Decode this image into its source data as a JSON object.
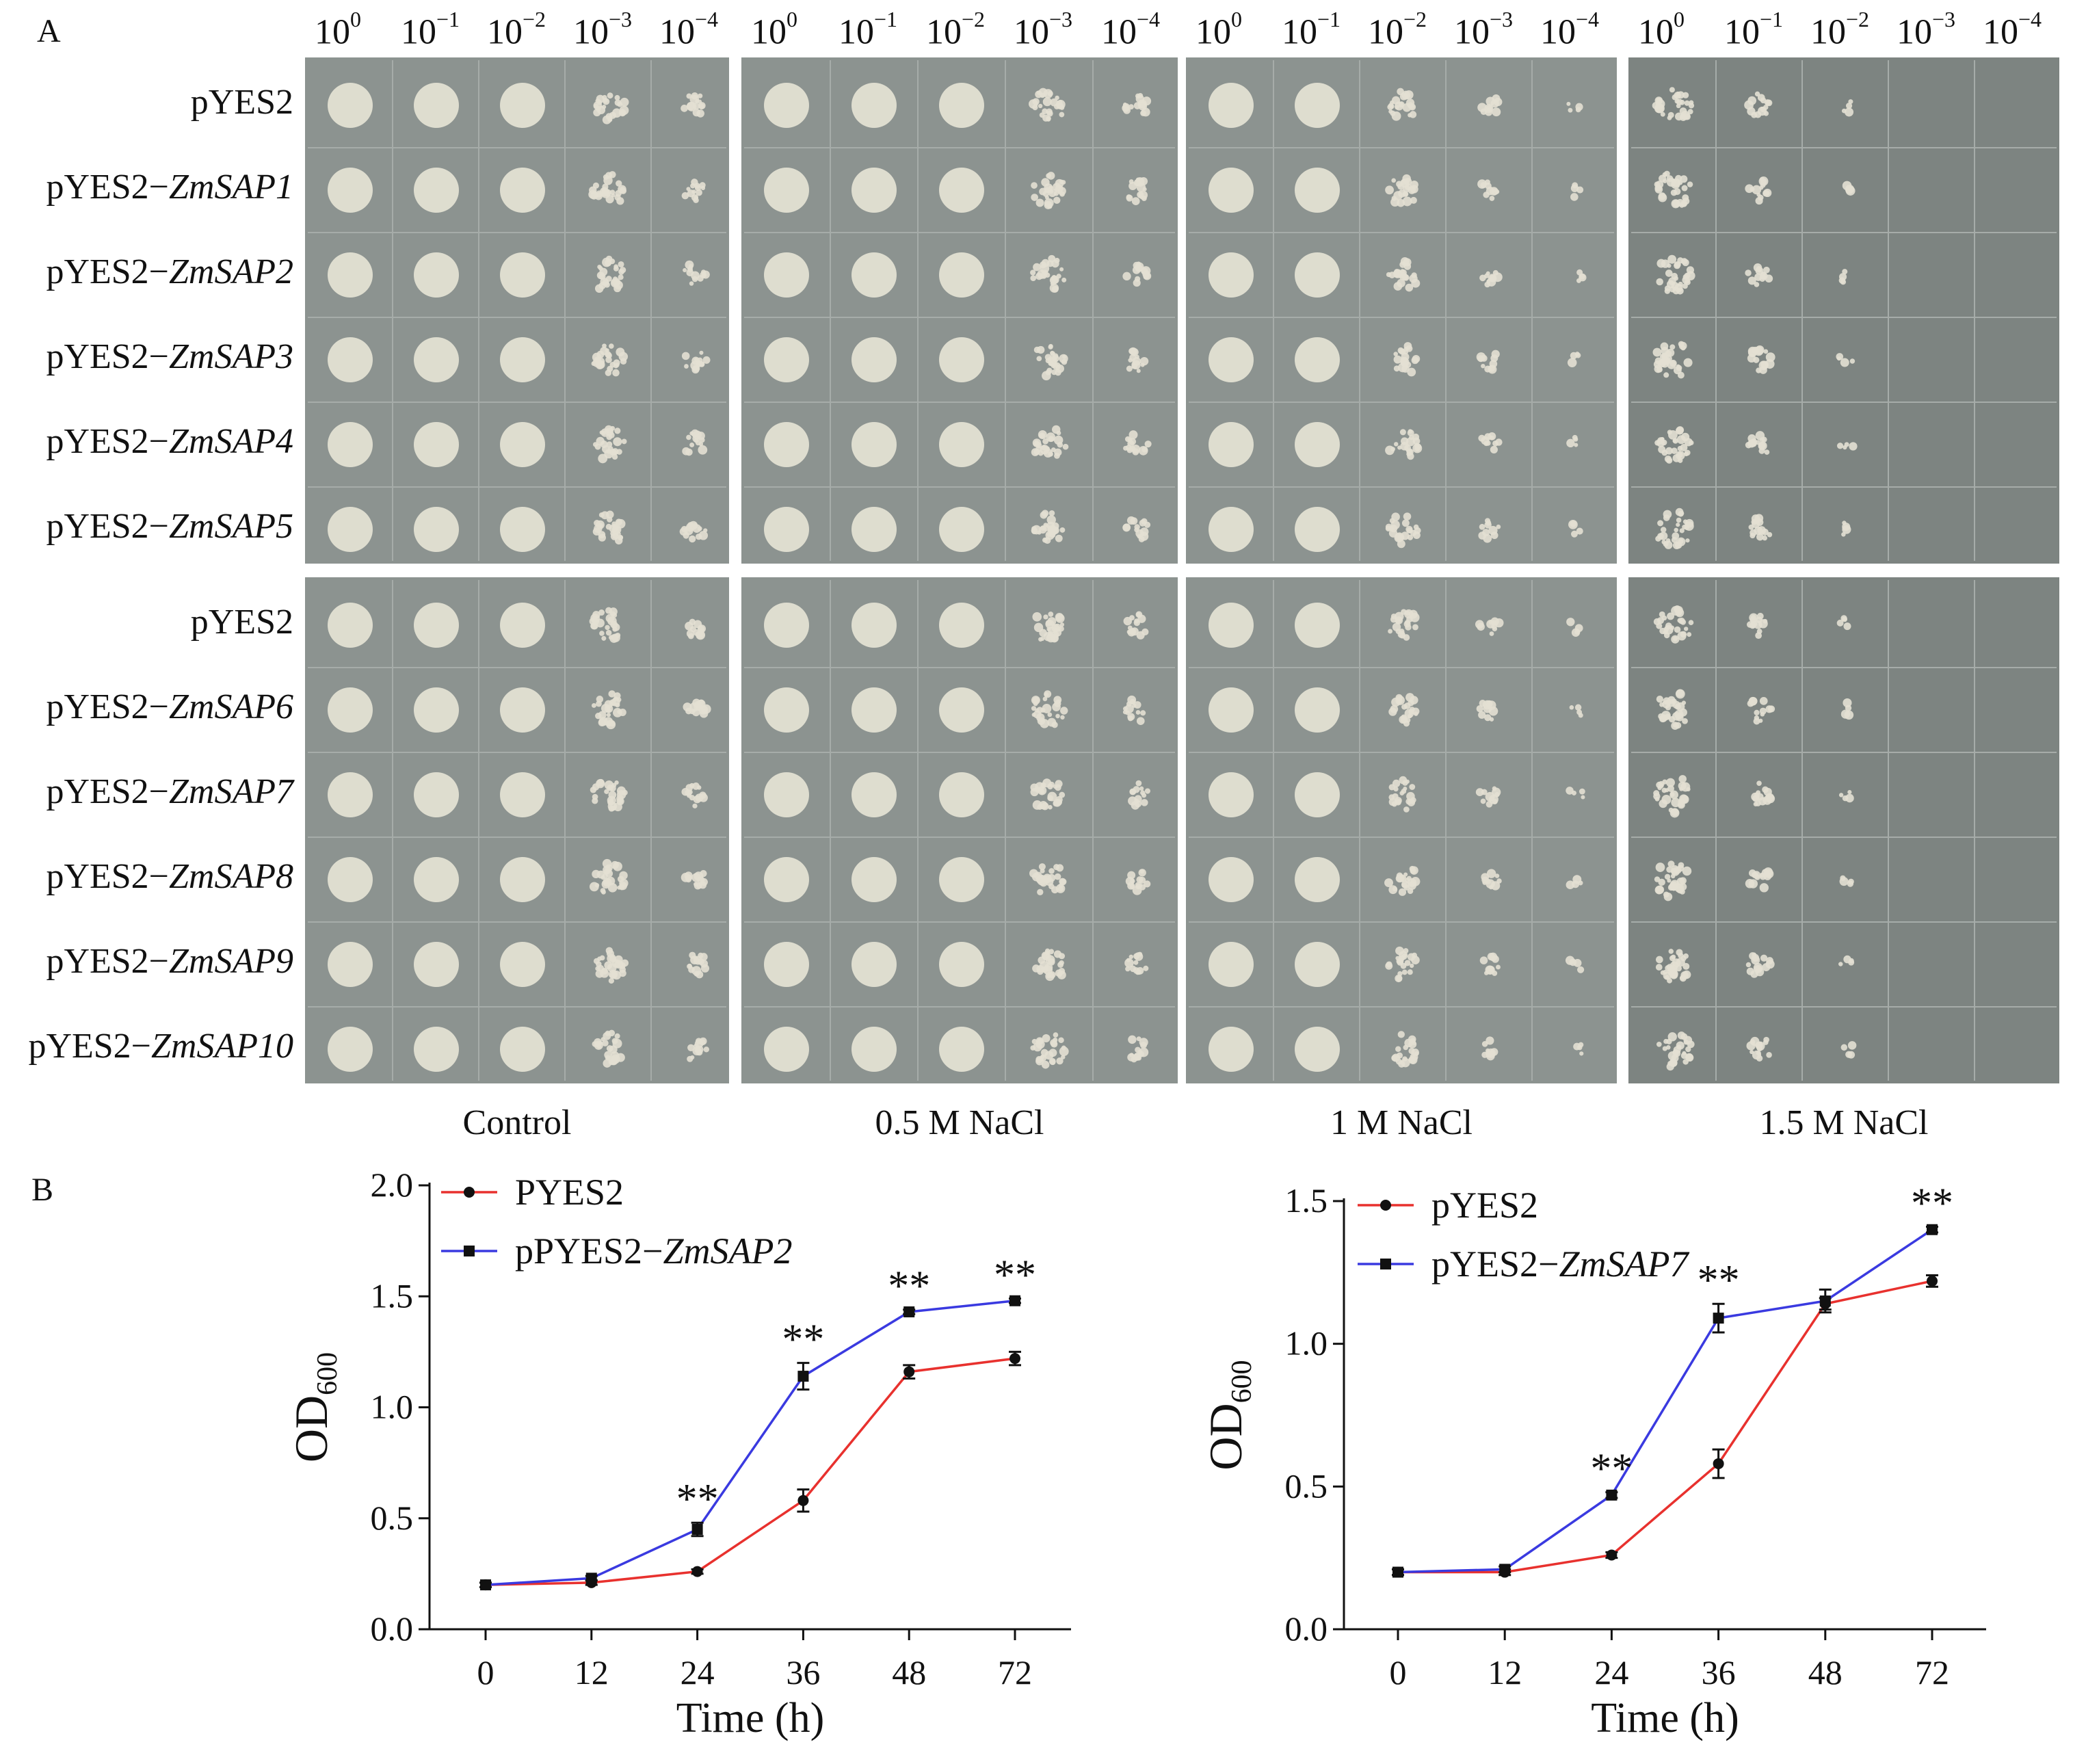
{
  "figure": {
    "panel_a_label": "A",
    "panel_b_label": "B",
    "dilution_base": "10",
    "dilution_exponents": [
      "0",
      "−1",
      "−2",
      "−3",
      "−4"
    ],
    "conditions": [
      "Control",
      "0.5 M NaCl",
      "1 M NaCl",
      "1.5 M NaCl"
    ],
    "row_groups": [
      [
        {
          "prefix": "pYES2",
          "gene": ""
        },
        {
          "prefix": "pYES2−",
          "gene": "ZmSAP1"
        },
        {
          "prefix": "pYES2−",
          "gene": "ZmSAP2"
        },
        {
          "prefix": "pYES2−",
          "gene": "ZmSAP3"
        },
        {
          "prefix": "pYES2−",
          "gene": "ZmSAP4"
        },
        {
          "prefix": "pYES2−",
          "gene": "ZmSAP5"
        }
      ],
      [
        {
          "prefix": "pYES2",
          "gene": ""
        },
        {
          "prefix": "pYES2−",
          "gene": "ZmSAP6"
        },
        {
          "prefix": "pYES2−",
          "gene": "ZmSAP7"
        },
        {
          "prefix": "pYES2−",
          "gene": "ZmSAP8"
        },
        {
          "prefix": "pYES2−",
          "gene": "ZmSAP9"
        },
        {
          "prefix": "pYES2−",
          "gene": "ZmSAP10"
        }
      ]
    ],
    "colors": {
      "plate_bg": "#8c9390",
      "plate_dark": "#7d8481",
      "colony": "#e3e0d3",
      "grid": "#a6aca9",
      "series_control": "#e8312e",
      "series_overexpression": "#3a3ae0"
    }
  },
  "chart_data": [
    {
      "type": "line",
      "title": "",
      "xlabel": "Time (h)",
      "ylabel": "OD",
      "ylabel_sub": "600",
      "categories": [
        "0",
        "12",
        "24",
        "36",
        "48",
        "72"
      ],
      "ylim": [
        0.0,
        2.0
      ],
      "yticks": [
        "0.0",
        "0.5",
        "1.0",
        "1.5",
        "2.0"
      ],
      "series": [
        {
          "name": "PYES2",
          "name_gene": "",
          "color": "#e8312e",
          "marker": "circle",
          "values": [
            0.2,
            0.21,
            0.26,
            0.58,
            1.16,
            1.22
          ],
          "errors": [
            0.01,
            0.01,
            0.01,
            0.05,
            0.03,
            0.03
          ]
        },
        {
          "name": "pPYES2−",
          "name_gene": "ZmSAP2",
          "color": "#3a3ae0",
          "marker": "square",
          "values": [
            0.2,
            0.23,
            0.45,
            1.14,
            1.43,
            1.48
          ],
          "errors": [
            0.01,
            0.01,
            0.03,
            0.06,
            0.01,
            0.01
          ]
        }
      ],
      "significance": [
        {
          "index": 2,
          "label": "**"
        },
        {
          "index": 3,
          "label": "**"
        },
        {
          "index": 4,
          "label": "**"
        },
        {
          "index": 5,
          "label": "**"
        }
      ]
    },
    {
      "type": "line",
      "title": "",
      "xlabel": "Time (h)",
      "ylabel": "OD",
      "ylabel_sub": "600",
      "categories": [
        "0",
        "12",
        "24",
        "36",
        "48",
        "72"
      ],
      "ylim": [
        0.0,
        1.5
      ],
      "yticks": [
        "0.0",
        "0.5",
        "1.0",
        "1.5"
      ],
      "series": [
        {
          "name": "pYES2",
          "name_gene": "",
          "color": "#e8312e",
          "marker": "circle",
          "values": [
            0.2,
            0.2,
            0.26,
            0.58,
            1.14,
            1.22
          ],
          "errors": [
            0.01,
            0.01,
            0.01,
            0.05,
            0.02,
            0.02
          ]
        },
        {
          "name": "pYES2−",
          "name_gene": "ZmSAP7",
          "color": "#3a3ae0",
          "marker": "square",
          "values": [
            0.2,
            0.21,
            0.47,
            1.09,
            1.15,
            1.4
          ],
          "errors": [
            0.01,
            0.01,
            0.01,
            0.05,
            0.04,
            0.01
          ]
        }
      ],
      "significance": [
        {
          "index": 2,
          "label": "**"
        },
        {
          "index": 3,
          "label": "**"
        },
        {
          "index": 5,
          "label": "**"
        }
      ]
    }
  ]
}
